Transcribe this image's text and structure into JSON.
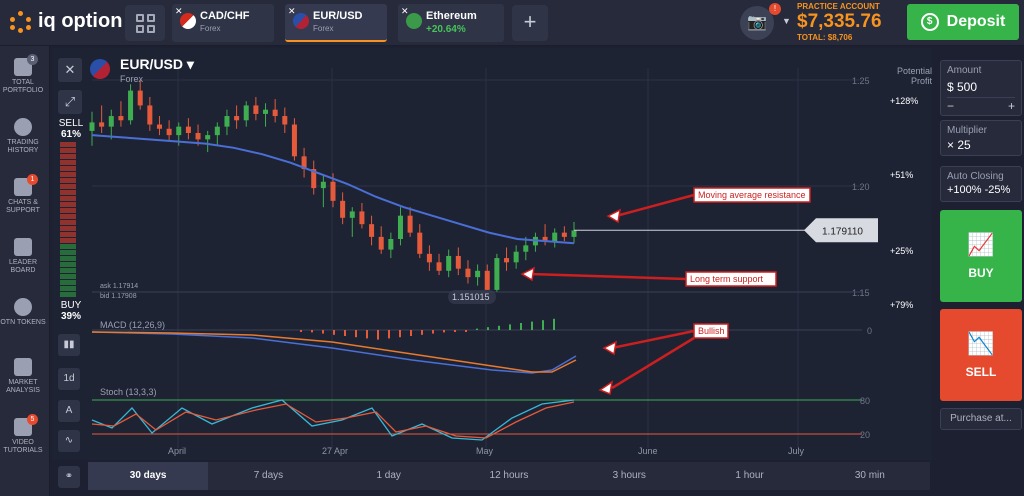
{
  "app": {
    "logo_text": "iq option"
  },
  "tabs": [
    {
      "name": "CAD/CHF",
      "sub": "Forex"
    },
    {
      "name": "EUR/USD",
      "sub": "Forex"
    },
    {
      "name": "Ethereum",
      "sub": "+20.64%"
    }
  ],
  "account": {
    "label": "PRACTICE ACCOUNT",
    "balance": "$7,335.76",
    "total": "TOTAL: $8,706",
    "badge": "!"
  },
  "deposit_label": "Deposit",
  "nav": [
    {
      "label": "TOTAL PORTFOLIO",
      "badge": "3"
    },
    {
      "label": "TRADING HISTORY",
      "badge": ""
    },
    {
      "label": "CHATS & SUPPORT",
      "badge": "1"
    },
    {
      "label": "LEADER BOARD",
      "badge": ""
    },
    {
      "label": "OTN TOKENS",
      "badge": ""
    },
    {
      "label": "MARKET ANALYSIS",
      "badge": ""
    },
    {
      "label": "VIDEO TUTORIALS",
      "badge": "5"
    }
  ],
  "asset": {
    "title": "EUR/USD",
    "sub": "Forex"
  },
  "sell_label": "SELL",
  "sell_pct": "61%",
  "buy_label": "BUY",
  "buy_pct": "39%",
  "tool_1d": "1d",
  "potential": {
    "l1": "Potential",
    "l2": "Profit"
  },
  "right": {
    "amount_label": "Amount",
    "amount_value": "$ 500",
    "multiplier_label": "Multiplier",
    "multiplier_value": "× 25",
    "autoclose_label": "Auto Closing",
    "autoclose_value": "+100%  -25%",
    "buy": "BUY",
    "sell": "SELL",
    "purchase": "Purchase at..."
  },
  "timeframes": [
    "30 days",
    "7 days",
    "1 day",
    "12 hours",
    "3 hours",
    "1 hour",
    "30 min"
  ],
  "chart_data": {
    "type": "candlestick",
    "price_ticks": [
      "1.25",
      "1.20",
      "1.15"
    ],
    "profit_ticks": [
      "+128%",
      "+51%",
      "+25%",
      "+79%"
    ],
    "x_ticks": [
      "April",
      "27 Apr",
      "May",
      "June",
      "July"
    ],
    "current_price": "1.179110",
    "low_label": "1.151015",
    "ask": "ask 1.17914",
    "bid": "bid 1.17908",
    "macd_label": "MACD (12,26,9)",
    "macd_zero": "0",
    "stoch_label": "Stoch (13,3,3)",
    "stoch_ticks": [
      "80",
      "20"
    ],
    "annotations": [
      "Moving average resistance",
      "Long term support",
      "Bullish"
    ],
    "candles": [
      [
        1.226,
        1.235,
        1.219,
        1.23
      ],
      [
        1.23,
        1.238,
        1.225,
        1.228
      ],
      [
        1.228,
        1.236,
        1.222,
        1.233
      ],
      [
        1.233,
        1.24,
        1.228,
        1.231
      ],
      [
        1.231,
        1.248,
        1.229,
        1.245
      ],
      [
        1.245,
        1.25,
        1.236,
        1.238
      ],
      [
        1.238,
        1.242,
        1.226,
        1.229
      ],
      [
        1.229,
        1.233,
        1.224,
        1.227
      ],
      [
        1.227,
        1.231,
        1.221,
        1.224
      ],
      [
        1.224,
        1.23,
        1.219,
        1.228
      ],
      [
        1.228,
        1.232,
        1.222,
        1.225
      ],
      [
        1.225,
        1.229,
        1.219,
        1.222
      ],
      [
        1.222,
        1.226,
        1.216,
        1.224
      ],
      [
        1.224,
        1.23,
        1.219,
        1.228
      ],
      [
        1.228,
        1.236,
        1.224,
        1.233
      ],
      [
        1.233,
        1.238,
        1.227,
        1.231
      ],
      [
        1.231,
        1.24,
        1.228,
        1.238
      ],
      [
        1.238,
        1.242,
        1.231,
        1.234
      ],
      [
        1.234,
        1.239,
        1.228,
        1.236
      ],
      [
        1.236,
        1.241,
        1.23,
        1.233
      ],
      [
        1.233,
        1.237,
        1.225,
        1.229
      ],
      [
        1.229,
        1.232,
        1.212,
        1.214
      ],
      [
        1.214,
        1.218,
        1.204,
        1.208
      ],
      [
        1.208,
        1.212,
        1.196,
        1.199
      ],
      [
        1.199,
        1.205,
        1.19,
        1.202
      ],
      [
        1.202,
        1.206,
        1.19,
        1.193
      ],
      [
        1.193,
        1.197,
        1.182,
        1.185
      ],
      [
        1.185,
        1.19,
        1.176,
        1.188
      ],
      [
        1.188,
        1.192,
        1.18,
        1.182
      ],
      [
        1.182,
        1.186,
        1.172,
        1.176
      ],
      [
        1.176,
        1.181,
        1.168,
        1.17
      ],
      [
        1.17,
        1.178,
        1.166,
        1.175
      ],
      [
        1.175,
        1.19,
        1.172,
        1.186
      ],
      [
        1.186,
        1.19,
        1.176,
        1.178
      ],
      [
        1.178,
        1.182,
        1.166,
        1.168
      ],
      [
        1.168,
        1.172,
        1.16,
        1.164
      ],
      [
        1.164,
        1.168,
        1.158,
        1.16
      ],
      [
        1.16,
        1.17,
        1.157,
        1.167
      ],
      [
        1.167,
        1.171,
        1.158,
        1.161
      ],
      [
        1.161,
        1.165,
        1.154,
        1.157
      ],
      [
        1.157,
        1.163,
        1.153,
        1.16
      ],
      [
        1.16,
        1.163,
        1.148,
        1.151
      ],
      [
        1.151,
        1.168,
        1.15,
        1.166
      ],
      [
        1.166,
        1.171,
        1.16,
        1.164
      ],
      [
        1.164,
        1.172,
        1.161,
        1.169
      ],
      [
        1.169,
        1.176,
        1.165,
        1.172
      ],
      [
        1.172,
        1.178,
        1.169,
        1.176
      ],
      [
        1.176,
        1.182,
        1.172,
        1.174
      ],
      [
        1.174,
        1.18,
        1.171,
        1.178
      ],
      [
        1.178,
        1.181,
        1.174,
        1.176
      ],
      [
        1.176,
        1.183,
        1.173,
        1.179
      ]
    ]
  }
}
